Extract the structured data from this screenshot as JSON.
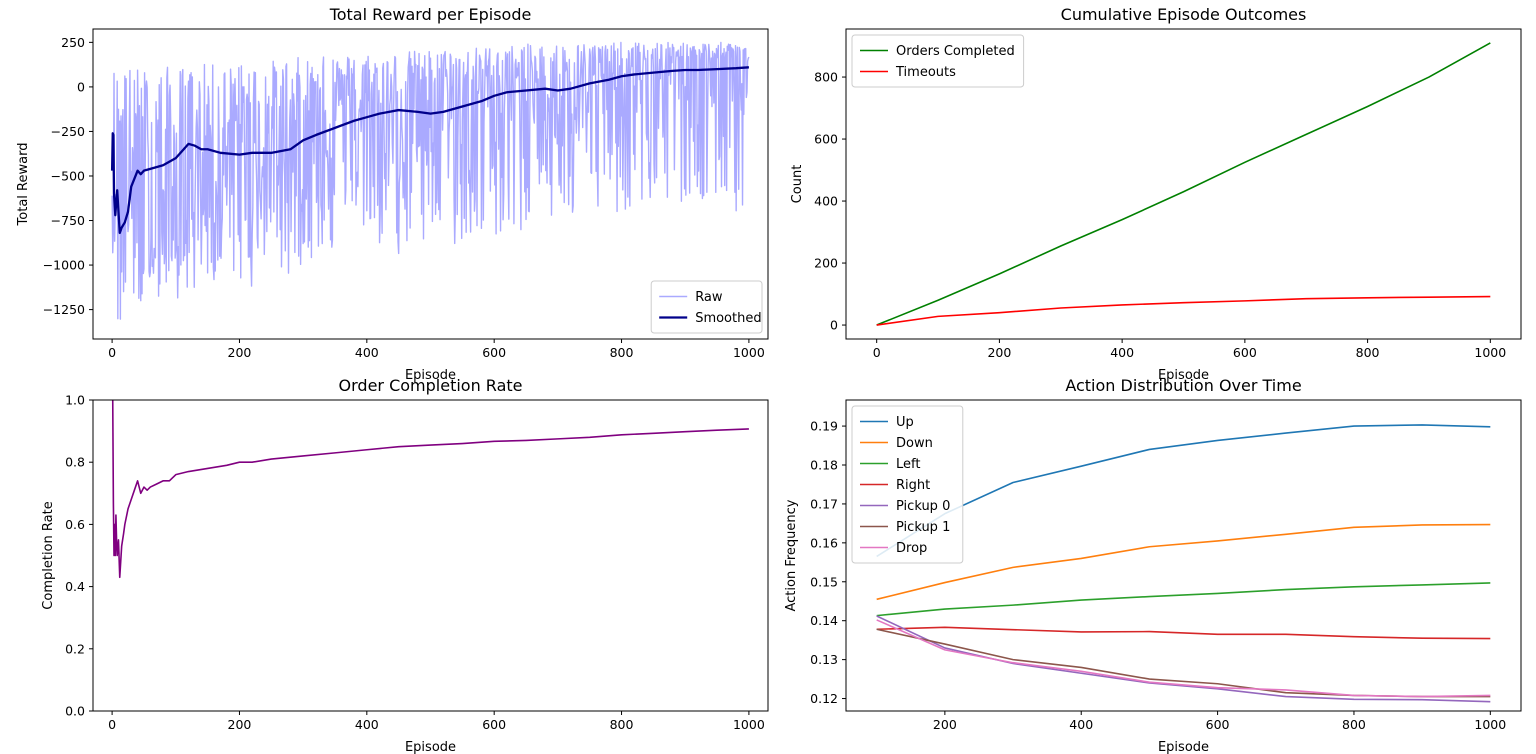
{
  "chart_data": [
    {
      "type": "line",
      "title": "Total Reward per Episode",
      "xlabel": "Episode",
      "ylabel": "Total Reward",
      "xlim": [
        -30,
        1030
      ],
      "ylim": [
        -1415,
        325
      ],
      "xticks": [
        0,
        200,
        400,
        600,
        800,
        1000
      ],
      "yticks": [
        250,
        0,
        -250,
        -500,
        -750,
        -1000,
        -1250
      ],
      "ytick_labels": [
        "250",
        "0",
        "−250",
        "−500",
        "−750",
        "−1000",
        "−1250"
      ],
      "legend": "lower-right",
      "series": [
        {
          "name": "Raw",
          "color": "#aaaaff",
          "style": "noisy",
          "x": [
            0,
            50,
            100,
            150,
            200,
            250,
            300,
            350,
            400,
            450,
            500,
            550,
            600,
            650,
            700,
            750,
            800,
            850,
            900,
            950,
            1000
          ],
          "y": [
            -470,
            -900,
            -850,
            -500,
            -450,
            -400,
            -300,
            -250,
            -250,
            -200,
            -150,
            -150,
            -50,
            -50,
            -50,
            0,
            0,
            50,
            100,
            100,
            110
          ],
          "low": [
            -1390,
            -1250,
            -1200,
            -1150,
            -1150,
            -1100,
            -1000,
            -950,
            -950,
            -950,
            -900,
            -900,
            -850,
            -800,
            -750,
            -720,
            -700,
            -680,
            -660,
            -700,
            -720
          ],
          "high": [
            120,
            120,
            120,
            130,
            130,
            150,
            170,
            180,
            200,
            200,
            210,
            220,
            230,
            240,
            245,
            250,
            250,
            250,
            250,
            250,
            250
          ]
        },
        {
          "name": "Smoothed",
          "color": "#00008b",
          "x": [
            0,
            1,
            2,
            3,
            5,
            8,
            10,
            12,
            15,
            20,
            25,
            30,
            40,
            45,
            50,
            60,
            80,
            100,
            110,
            120,
            130,
            140,
            150,
            170,
            200,
            220,
            250,
            280,
            300,
            320,
            350,
            380,
            400,
            420,
            450,
            480,
            500,
            520,
            550,
            580,
            600,
            620,
            650,
            680,
            700,
            720,
            750,
            780,
            800,
            820,
            850,
            880,
            900,
            920,
            950,
            980,
            1000
          ],
          "y": [
            -470,
            -260,
            -270,
            -600,
            -720,
            -580,
            -700,
            -820,
            -790,
            -760,
            -700,
            -560,
            -470,
            -490,
            -470,
            -460,
            -440,
            -400,
            -360,
            -320,
            -330,
            -350,
            -350,
            -370,
            -380,
            -370,
            -370,
            -350,
            -300,
            -270,
            -230,
            -190,
            -170,
            -150,
            -130,
            -140,
            -150,
            -140,
            -110,
            -80,
            -50,
            -30,
            -20,
            -10,
            -20,
            -10,
            20,
            40,
            60,
            70,
            80,
            90,
            95,
            95,
            100,
            105,
            110
          ]
        }
      ]
    },
    {
      "type": "line",
      "title": "Cumulative Episode Outcomes",
      "xlabel": "Episode",
      "ylabel": "Count",
      "xlim": [
        -50,
        1050
      ],
      "ylim": [
        -45,
        955
      ],
      "xticks": [
        0,
        200,
        400,
        600,
        800,
        1000
      ],
      "yticks": [
        0,
        200,
        400,
        600,
        800
      ],
      "legend": "top-left",
      "series": [
        {
          "name": "Orders Completed",
          "color": "#008000",
          "x": [
            0,
            100,
            200,
            300,
            400,
            500,
            600,
            700,
            800,
            900,
            1000
          ],
          "y": [
            0,
            80,
            165,
            255,
            340,
            430,
            525,
            615,
            705,
            800,
            910
          ]
        },
        {
          "name": "Timeouts",
          "color": "#ff0000",
          "x": [
            0,
            100,
            200,
            300,
            400,
            500,
            600,
            700,
            800,
            900,
            1000
          ],
          "y": [
            0,
            28,
            40,
            55,
            65,
            72,
            78,
            85,
            88,
            90,
            92
          ]
        }
      ]
    },
    {
      "type": "line",
      "title": "Order Completion Rate",
      "xlabel": "Episode",
      "ylabel": "Completion Rate",
      "xlim": [
        -30,
        1030
      ],
      "ylim": [
        0.0,
        1.0
      ],
      "xticks": [
        0,
        200,
        400,
        600,
        800,
        1000
      ],
      "yticks": [
        0.0,
        0.2,
        0.4,
        0.6,
        0.8,
        1.0
      ],
      "series": [
        {
          "name": "",
          "color": "#800080",
          "x": [
            0,
            1,
            2,
            3,
            4,
            5,
            6,
            7,
            8,
            10,
            12,
            15,
            18,
            20,
            25,
            30,
            35,
            40,
            45,
            50,
            55,
            60,
            70,
            80,
            90,
            100,
            120,
            150,
            180,
            200,
            220,
            250,
            300,
            350,
            400,
            450,
            500,
            550,
            600,
            650,
            700,
            750,
            800,
            850,
            900,
            950,
            1000
          ],
          "y": [
            1.0,
            1.0,
            0.67,
            0.5,
            0.6,
            0.5,
            0.63,
            0.55,
            0.5,
            0.55,
            0.43,
            0.53,
            0.57,
            0.6,
            0.65,
            0.68,
            0.71,
            0.74,
            0.7,
            0.72,
            0.71,
            0.72,
            0.73,
            0.74,
            0.74,
            0.76,
            0.77,
            0.78,
            0.79,
            0.8,
            0.8,
            0.81,
            0.82,
            0.83,
            0.84,
            0.85,
            0.855,
            0.86,
            0.867,
            0.87,
            0.875,
            0.88,
            0.888,
            0.893,
            0.898,
            0.903,
            0.907
          ]
        }
      ]
    },
    {
      "type": "line",
      "title": "Action Distribution Over Time",
      "xlabel": "Episode",
      "ylabel": "Action Frequency",
      "xlim": [
        55,
        1045
      ],
      "ylim": [
        0.1168,
        0.1967
      ],
      "xticks": [
        200,
        400,
        600,
        800,
        1000
      ],
      "yticks": [
        0.12,
        0.13,
        0.14,
        0.15,
        0.16,
        0.17,
        0.18,
        0.19
      ],
      "legend": "top-left",
      "x": [
        100,
        200,
        300,
        400,
        500,
        600,
        700,
        800,
        900,
        1000
      ],
      "series": [
        {
          "name": "Up",
          "color": "#1f77b4",
          "values": [
            0.1565,
            0.1675,
            0.1755,
            0.1797,
            0.184,
            0.1863,
            0.1882,
            0.19,
            0.1903,
            0.1898
          ]
        },
        {
          "name": "Down",
          "color": "#ff7f0e",
          "values": [
            0.1455,
            0.1498,
            0.1537,
            0.156,
            0.159,
            0.1605,
            0.1622,
            0.164,
            0.1646,
            0.1647
          ]
        },
        {
          "name": "Left",
          "color": "#2ca02c",
          "values": [
            0.1413,
            0.143,
            0.144,
            0.1453,
            0.1462,
            0.147,
            0.148,
            0.1487,
            0.1492,
            0.1497
          ]
        },
        {
          "name": "Right",
          "color": "#d62728",
          "values": [
            0.1378,
            0.1383,
            0.1377,
            0.1371,
            0.1372,
            0.1365,
            0.1365,
            0.1359,
            0.1355,
            0.1354
          ]
        },
        {
          "name": "Pickup 0",
          "color": "#9467bd",
          "values": [
            0.1412,
            0.133,
            0.129,
            0.1265,
            0.124,
            0.1225,
            0.1205,
            0.1198,
            0.1197,
            0.1192
          ]
        },
        {
          "name": "Pickup 1",
          "color": "#8c564b",
          "values": [
            0.1378,
            0.134,
            0.13,
            0.128,
            0.125,
            0.1238,
            0.1215,
            0.1208,
            0.1205,
            0.1205
          ]
        },
        {
          "name": "Drop",
          "color": "#e377c2",
          "values": [
            0.1402,
            0.1325,
            0.1292,
            0.127,
            0.1242,
            0.1228,
            0.1222,
            0.1208,
            0.1205,
            0.1208
          ]
        }
      ]
    }
  ]
}
